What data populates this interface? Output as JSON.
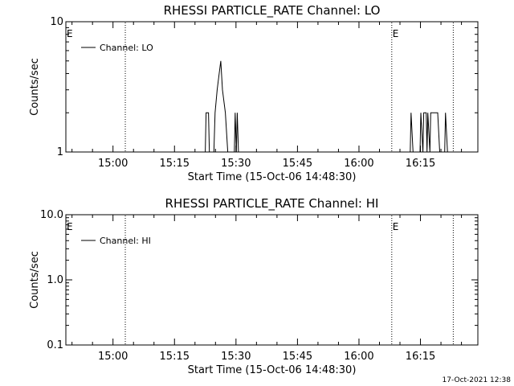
{
  "chart_data": [
    {
      "type": "line",
      "title": "RHESSI PARTICLE_RATE Channel: LO",
      "xlabel": "Start Time (15-Oct-06 14:48:30)",
      "ylabel": "Counts/sec",
      "yscale": "log",
      "ylim": [
        1,
        10
      ],
      "ytick_values": [
        1,
        10
      ],
      "ytick_labels": [
        "1",
        "10"
      ],
      "xlim": [
        "14:48:30",
        "16:29:00"
      ],
      "xtick_labels": [
        "15:00",
        "15:15",
        "15:30",
        "15:45",
        "16:00",
        "16:15"
      ],
      "xtick_minutes": [
        900,
        915,
        930,
        945,
        960,
        975
      ],
      "xlim_minutes": [
        888.5,
        989
      ],
      "minor_xtick_step_minutes": 5,
      "grid": false,
      "legend_position": "top-left",
      "vlines_minutes": [
        903,
        968,
        983
      ],
      "flags": [
        {
          "label": "E",
          "at_minutes": 888.5
        },
        {
          "label": "E",
          "at_minutes": 968
        }
      ],
      "series": [
        {
          "name": "Channel: LO",
          "points": [
            [
              888.5,
              1
            ],
            [
              922.5,
              1
            ],
            [
              922.7,
              2
            ],
            [
              923.3,
              2
            ],
            [
              923.5,
              1
            ],
            [
              924.6,
              1
            ],
            [
              924.9,
              2
            ],
            [
              925.4,
              3
            ],
            [
              925.9,
              4
            ],
            [
              926.3,
              5
            ],
            [
              926.7,
              3
            ],
            [
              927.4,
              2
            ],
            [
              928,
              1
            ],
            [
              929.6,
              1
            ],
            [
              929.8,
              2
            ],
            [
              930.1,
              1
            ],
            [
              930.3,
              2
            ],
            [
              930.6,
              1
            ],
            [
              972.5,
              1
            ],
            [
              972.7,
              2
            ],
            [
              973.2,
              1
            ],
            [
              974.9,
              1
            ],
            [
              975.1,
              2
            ],
            [
              975.6,
              1
            ],
            [
              975.8,
              2
            ],
            [
              976.4,
              2
            ],
            [
              976.6,
              1
            ],
            [
              976.8,
              2
            ],
            [
              977.3,
              1
            ],
            [
              977.5,
              2
            ],
            [
              979.2,
              2
            ],
            [
              979.7,
              1
            ],
            [
              980.9,
              1
            ],
            [
              981.1,
              2
            ],
            [
              981.6,
              1
            ],
            [
              989,
              1
            ]
          ]
        }
      ]
    },
    {
      "type": "line",
      "title": "RHESSI PARTICLE_RATE Channel: HI",
      "xlabel": "Start Time (15-Oct-06 14:48:30)",
      "ylabel": "Counts/sec",
      "yscale": "log",
      "ylim": [
        0.1,
        10
      ],
      "ytick_values": [
        0.1,
        1,
        10
      ],
      "ytick_labels": [
        "0.1",
        "1.0",
        "10.0"
      ],
      "xlim": [
        "14:48:30",
        "16:29:00"
      ],
      "xtick_labels": [
        "15:00",
        "15:15",
        "15:30",
        "15:45",
        "16:00",
        "16:15"
      ],
      "xtick_minutes": [
        900,
        915,
        930,
        945,
        960,
        975
      ],
      "xlim_minutes": [
        888.5,
        989
      ],
      "minor_xtick_step_minutes": 5,
      "grid": false,
      "legend_position": "top-left",
      "vlines_minutes": [
        903,
        968,
        983
      ],
      "flags": [
        {
          "label": "E",
          "at_minutes": 888.5
        },
        {
          "label": "E",
          "at_minutes": 968
        }
      ],
      "series": [
        {
          "name": "Channel: HI",
          "points": []
        }
      ]
    }
  ],
  "footer": {
    "timestamp": "17-Oct-2021 12:38"
  }
}
